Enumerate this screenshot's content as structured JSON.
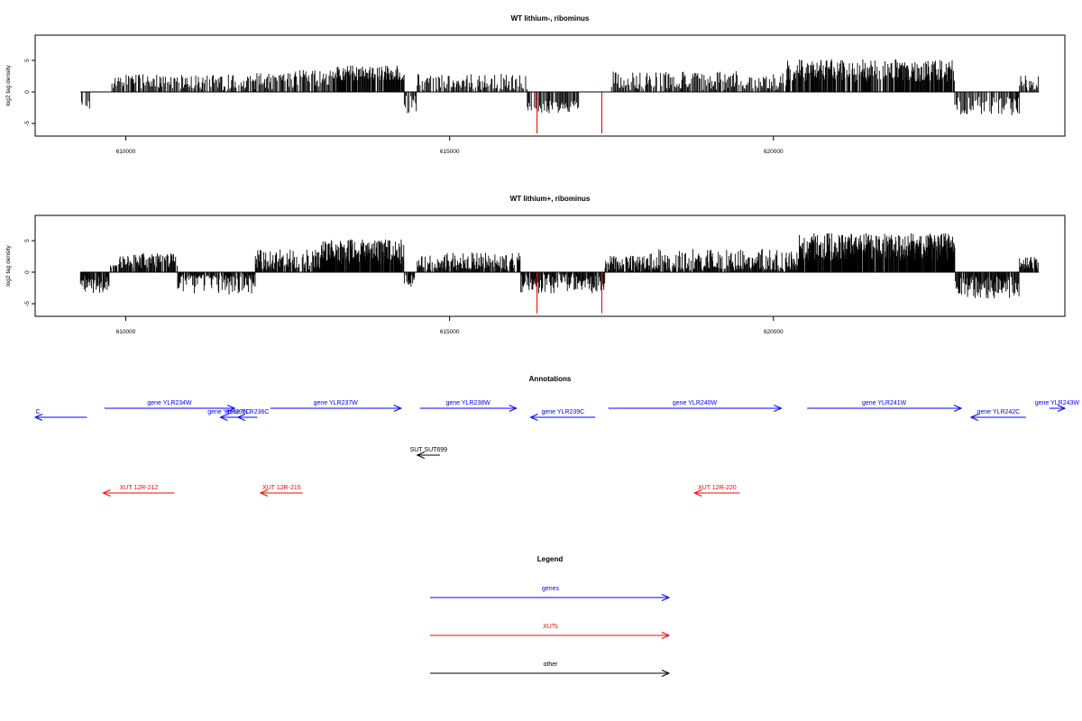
{
  "panels": [
    {
      "title": "WT lithium-, ribominus",
      "ylabel": "log2 tag density",
      "yticks": [
        -5,
        0,
        5
      ],
      "ylim": [
        -7,
        9
      ],
      "xlim": [
        608600,
        624500
      ],
      "xticks": [
        610000,
        615000,
        620000
      ],
      "track_color": "#000000",
      "highlight_color": "#ff0000",
      "highlights": [
        {
          "x": 616350,
          "y": -6.6
        },
        {
          "x": 617350,
          "y": -6.6
        }
      ],
      "profile": {
        "start": 609300,
        "end": 624100,
        "segments": [
          {
            "from": 609300,
            "to": 609450,
            "base": -2.0,
            "amp": 1.5
          },
          {
            "from": 609450,
            "to": 609750,
            "base": 0.0,
            "amp": 0.0
          },
          {
            "from": 609750,
            "to": 610700,
            "base": 1.8,
            "amp": 1.2
          },
          {
            "from": 610700,
            "to": 612600,
            "base": 1.6,
            "amp": 1.4
          },
          {
            "from": 612600,
            "to": 613200,
            "base": 2.2,
            "amp": 1.4
          },
          {
            "from": 613200,
            "to": 614300,
            "base": 3.0,
            "amp": 1.2
          },
          {
            "from": 614300,
            "to": 614500,
            "base": -2.0,
            "amp": 1.5
          },
          {
            "from": 614500,
            "to": 616200,
            "base": 1.5,
            "amp": 1.4
          },
          {
            "from": 616200,
            "to": 617000,
            "base": -2.4,
            "amp": 1.0
          },
          {
            "from": 617000,
            "to": 617500,
            "base": 0.0,
            "amp": 0.0
          },
          {
            "from": 617500,
            "to": 619500,
            "base": 1.8,
            "amp": 1.5
          },
          {
            "from": 619500,
            "to": 620200,
            "base": 1.2,
            "amp": 1.8
          },
          {
            "from": 620200,
            "to": 622800,
            "base": 3.4,
            "amp": 1.8
          },
          {
            "from": 622800,
            "to": 623800,
            "base": -2.2,
            "amp": 1.5
          },
          {
            "from": 623800,
            "to": 624100,
            "base": 1.5,
            "amp": 1.2
          }
        ]
      }
    },
    {
      "title": "WT lithium+, ribominus",
      "ylabel": "log2 tag density",
      "yticks": [
        -5,
        0,
        5
      ],
      "ylim": [
        -7,
        9
      ],
      "xlim": [
        608600,
        624500
      ],
      "xticks": [
        610000,
        615000,
        620000
      ],
      "track_color": "#000000",
      "highlight_color": "#ff0000",
      "highlights": [
        {
          "x": 616350,
          "y": -6.5
        },
        {
          "x": 617350,
          "y": -6.5
        }
      ],
      "profile": {
        "start": 609300,
        "end": 624100,
        "segments": [
          {
            "from": 609300,
            "to": 609750,
            "base": -2.0,
            "amp": 1.5
          },
          {
            "from": 609750,
            "to": 610800,
            "base": 1.8,
            "amp": 1.2
          },
          {
            "from": 610800,
            "to": 612000,
            "base": -1.2,
            "amp": 2.4
          },
          {
            "from": 612000,
            "to": 613000,
            "base": 1.8,
            "amp": 1.8
          },
          {
            "from": 613000,
            "to": 614300,
            "base": 3.2,
            "amp": 2.0
          },
          {
            "from": 614300,
            "to": 614500,
            "base": -1.5,
            "amp": 1.2
          },
          {
            "from": 614500,
            "to": 616100,
            "base": 1.6,
            "amp": 1.5
          },
          {
            "from": 616100,
            "to": 617400,
            "base": -1.8,
            "amp": 1.6
          },
          {
            "from": 617400,
            "to": 618000,
            "base": 1.4,
            "amp": 1.2
          },
          {
            "from": 618000,
            "to": 620400,
            "base": 1.2,
            "amp": 2.5
          },
          {
            "from": 620400,
            "to": 622800,
            "base": 4.0,
            "amp": 2.2
          },
          {
            "from": 622800,
            "to": 623800,
            "base": -2.4,
            "amp": 1.8
          },
          {
            "from": 623800,
            "to": 624100,
            "base": 1.5,
            "amp": 1.0
          }
        ]
      }
    }
  ],
  "annotations": {
    "title": "Annotations",
    "xlim": [
      608600,
      624500
    ],
    "colors": {
      "gene": "#0000ff",
      "xut": "#ff0000",
      "other": "#000000"
    },
    "genes": [
      {
        "label": "C",
        "start": 608600,
        "end": 609400,
        "strand": "-",
        "row": 1
      },
      {
        "label": "gene YLR234W",
        "start": 609670,
        "end": 611680,
        "strand": "+",
        "row": 0
      },
      {
        "label": "gene YLR235C",
        "start": 611460,
        "end": 611730,
        "strand": "-",
        "row": 1
      },
      {
        "label": "gene YLR236C",
        "start": 611730,
        "end": 612030,
        "strand": "-",
        "row": 1
      },
      {
        "label": "gene YLR237W",
        "start": 612230,
        "end": 614250,
        "strand": "+",
        "row": 0
      },
      {
        "label": "gene YLR238W",
        "start": 614540,
        "end": 616030,
        "strand": "+",
        "row": 0
      },
      {
        "label": "gene YLR239C",
        "start": 616250,
        "end": 617250,
        "strand": "-",
        "row": 1
      },
      {
        "label": "gene YLR240W",
        "start": 617450,
        "end": 620120,
        "strand": "+",
        "row": 0
      },
      {
        "label": "gene YLR241W",
        "start": 620520,
        "end": 622900,
        "strand": "+",
        "row": 0
      },
      {
        "label": "gene YLR242C",
        "start": 623050,
        "end": 623900,
        "strand": "-",
        "row": 1
      },
      {
        "label": "gene YLR243W",
        "start": 624260,
        "end": 624500,
        "strand": "+",
        "row": 0
      }
    ],
    "others": [
      {
        "label": "SUT SUT699",
        "start": 614500,
        "end": 614850,
        "strand": "-",
        "row": 2
      }
    ],
    "xuts": [
      {
        "label": "XUT 12R-212",
        "start": 609650,
        "end": 610750,
        "strand": "-",
        "row": 3
      },
      {
        "label": "XUT 12R-215",
        "start": 612080,
        "end": 612730,
        "strand": "-",
        "row": 3
      },
      {
        "label": "XUT 12R-220",
        "start": 618780,
        "end": 619480,
        "strand": "-",
        "row": 3
      }
    ]
  },
  "legend": {
    "title": "Legend",
    "items": [
      {
        "label": "genes",
        "color": "#0000ff"
      },
      {
        "label": "XUTs",
        "color": "#ff0000"
      },
      {
        "label": "other",
        "color": "#000000"
      }
    ]
  },
  "chart_data": [
    {
      "type": "bar",
      "title": "WT lithium-, ribominus",
      "xlabel": "",
      "ylabel": "log2 tag density",
      "xlim": [
        608600,
        624500
      ],
      "ylim": [
        -7,
        9
      ],
      "x_ticks": [
        610000,
        615000,
        620000
      ],
      "y_ticks": [
        -5,
        0,
        5
      ],
      "regions": [
        {
          "start": 609300,
          "end": 609450,
          "approx_log2": -2.0
        },
        {
          "start": 609750,
          "end": 612600,
          "approx_log2": 1.7
        },
        {
          "start": 612600,
          "end": 614300,
          "approx_log2": 2.8
        },
        {
          "start": 614300,
          "end": 614500,
          "approx_log2": -2.0
        },
        {
          "start": 614500,
          "end": 616200,
          "approx_log2": 1.5
        },
        {
          "start": 616200,
          "end": 617000,
          "approx_log2": -2.4
        },
        {
          "start": 617500,
          "end": 620200,
          "approx_log2": 1.6
        },
        {
          "start": 620200,
          "end": 622800,
          "approx_log2": 3.4
        },
        {
          "start": 622800,
          "end": 623800,
          "approx_log2": -2.2
        },
        {
          "start": 623800,
          "end": 624100,
          "approx_log2": 1.5
        }
      ],
      "highlighted_points": [
        {
          "x": 616350,
          "y": -6.6
        },
        {
          "x": 617350,
          "y": -6.6
        }
      ]
    },
    {
      "type": "bar",
      "title": "WT lithium+, ribominus",
      "xlabel": "",
      "ylabel": "log2 tag density",
      "xlim": [
        608600,
        624500
      ],
      "ylim": [
        -7,
        9
      ],
      "x_ticks": [
        610000,
        615000,
        620000
      ],
      "y_ticks": [
        -5,
        0,
        5
      ],
      "regions": [
        {
          "start": 609300,
          "end": 609750,
          "approx_log2": -2.0
        },
        {
          "start": 609750,
          "end": 610800,
          "approx_log2": 1.8
        },
        {
          "start": 610800,
          "end": 612000,
          "approx_log2": -1.2
        },
        {
          "start": 612000,
          "end": 613000,
          "approx_log2": 1.8
        },
        {
          "start": 613000,
          "end": 614300,
          "approx_log2": 3.2
        },
        {
          "start": 614500,
          "end": 616100,
          "approx_log2": 1.6
        },
        {
          "start": 616100,
          "end": 617400,
          "approx_log2": -1.8
        },
        {
          "start": 617400,
          "end": 620400,
          "approx_log2": 1.3
        },
        {
          "start": 620400,
          "end": 622800,
          "approx_log2": 4.0
        },
        {
          "start": 622800,
          "end": 623800,
          "approx_log2": -2.4
        },
        {
          "start": 623800,
          "end": 624100,
          "approx_log2": 1.5
        }
      ],
      "highlighted_points": [
        {
          "x": 616350,
          "y": -6.5
        },
        {
          "x": 617350,
          "y": -6.5
        }
      ]
    }
  ]
}
